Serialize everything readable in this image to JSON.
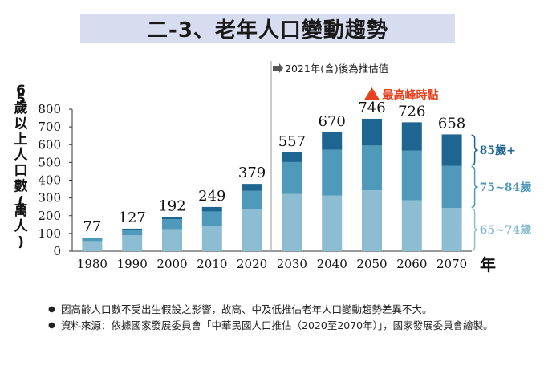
{
  "title": "二-3、老年人口變動趨勢",
  "notes": [
    "因高齡人口數不受出生假設之影響，故高、中及低推估老年人口變動趨勢差異不大。",
    "資料來源：依據國家發展委員會「中華民國人口推估（2020至2070年）」，國家發展委員會繪製。"
  ],
  "chart_data": {
    "type": "bar",
    "stacked": true,
    "ylabel": "65歲以上人口數(萬人)",
    "xlabel": "年",
    "ylim": [
      0,
      800
    ],
    "yticks": [
      0,
      100,
      200,
      300,
      400,
      500,
      600,
      700,
      800
    ],
    "categories": [
      "1980",
      "1990",
      "2000",
      "2010",
      "2020",
      "2030",
      "2040",
      "2050",
      "2060",
      "2070"
    ],
    "totals": [
      77,
      127,
      192,
      249,
      379,
      557,
      670,
      746,
      726,
      658
    ],
    "projection_note": "2021年(含)後為推估值",
    "projection_start_index": 5,
    "peak_label": "最高峰時點",
    "peak_index": 7,
    "series": [
      {
        "name": "65~74歲",
        "values": [
          57,
          89,
          124,
          144,
          239,
          322,
          314,
          343,
          286,
          243
        ],
        "color": "#8dbdd3"
      },
      {
        "name": "75~84歲",
        "values": [
          17,
          33,
          56,
          80,
          101,
          180,
          257,
          252,
          280,
          237
        ],
        "color": "#4f9abb"
      },
      {
        "name": "85歲+",
        "values": [
          3,
          5,
          12,
          25,
          39,
          55,
          99,
          151,
          160,
          178
        ],
        "color": "#1e6592"
      }
    ],
    "colors": {
      "peak_marker": "#e8421f",
      "peak_text": "#e8421f",
      "axis": "#333333",
      "divider": "#aaaaaa"
    }
  }
}
